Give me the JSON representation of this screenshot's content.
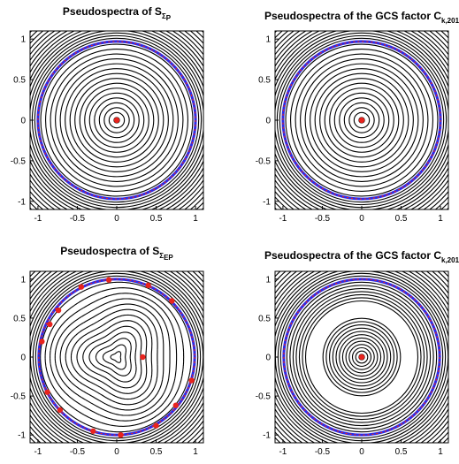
{
  "chart_data": [
    {
      "type": "contour",
      "title_main": "Pseudospectra of S",
      "title_sub": "Σ",
      "title_subsub": "P",
      "xlim": [
        -1.1,
        1.1
      ],
      "ylim": [
        -1.1,
        1.1
      ],
      "xticks": [
        "-1",
        "-0.5",
        "0",
        "0.5",
        "1"
      ],
      "yticks": [
        "1",
        "0.5",
        "0",
        "-0.5",
        "-1"
      ],
      "field": "circular",
      "unit_circle_color": "#2a2ae8",
      "eigenvalue_color": "#e8241e",
      "eigenvalues": [
        [
          0,
          0
        ]
      ]
    },
    {
      "type": "contour",
      "title_main": "Pseudospectra of the GCS factor C",
      "title_sub": "k,201",
      "title_subsub": "",
      "xlim": [
        -1.1,
        1.1
      ],
      "ylim": [
        -1.1,
        1.1
      ],
      "xticks": [
        "-1",
        "-0.5",
        "0",
        "0.5",
        "1"
      ],
      "yticks": [
        "1",
        "0.5",
        "0",
        "-0.5",
        "-1"
      ],
      "field": "circular",
      "unit_circle_color": "#2a2ae8",
      "eigenvalue_color": "#e8241e",
      "eigenvalues": [
        [
          0,
          0
        ]
      ]
    },
    {
      "type": "contour",
      "title_main": "Pseudospectra of S",
      "title_sub": "Σ",
      "title_subsub": "EP",
      "xlim": [
        -1.1,
        1.1
      ],
      "ylim": [
        -1.1,
        1.1
      ],
      "xticks": [
        "-1",
        "-0.5",
        "0",
        "0.5",
        "1"
      ],
      "yticks": [
        "1",
        "0.5",
        "0",
        "-0.5",
        "-1"
      ],
      "field": "three-lobe",
      "unit_circle_color": "#2a2ae8",
      "eigenvalue_color": "#e8241e",
      "eigenvalues": [
        [
          0.33,
          0
        ],
        [
          -0.74,
          0.6
        ],
        [
          -0.85,
          0.42
        ],
        [
          -0.95,
          0.2
        ],
        [
          -0.88,
          -0.45
        ],
        [
          -0.72,
          -0.68
        ],
        [
          -0.3,
          -0.95
        ],
        [
          0.05,
          -1.0
        ],
        [
          0.5,
          -0.88
        ],
        [
          0.75,
          -0.62
        ],
        [
          0.95,
          -0.3
        ],
        [
          0.7,
          0.72
        ],
        [
          0.4,
          0.92
        ],
        [
          -0.1,
          0.99
        ],
        [
          -0.45,
          0.9
        ]
      ]
    },
    {
      "type": "contour",
      "title_main": "Pseudospectra of the GCS factor C",
      "title_sub": "k,201",
      "title_subsub": "",
      "xlim": [
        -1.1,
        1.1
      ],
      "ylim": [
        -1.1,
        1.1
      ],
      "xticks": [
        "-1",
        "-0.5",
        "0",
        "0.5",
        "1"
      ],
      "yticks": [
        "1",
        "0.5",
        "0",
        "-0.5",
        "-1"
      ],
      "field": "gap",
      "unit_circle_color": "#2a2ae8",
      "eigenvalue_color": "#e8241e",
      "eigenvalues": [
        [
          0,
          0
        ]
      ]
    }
  ]
}
